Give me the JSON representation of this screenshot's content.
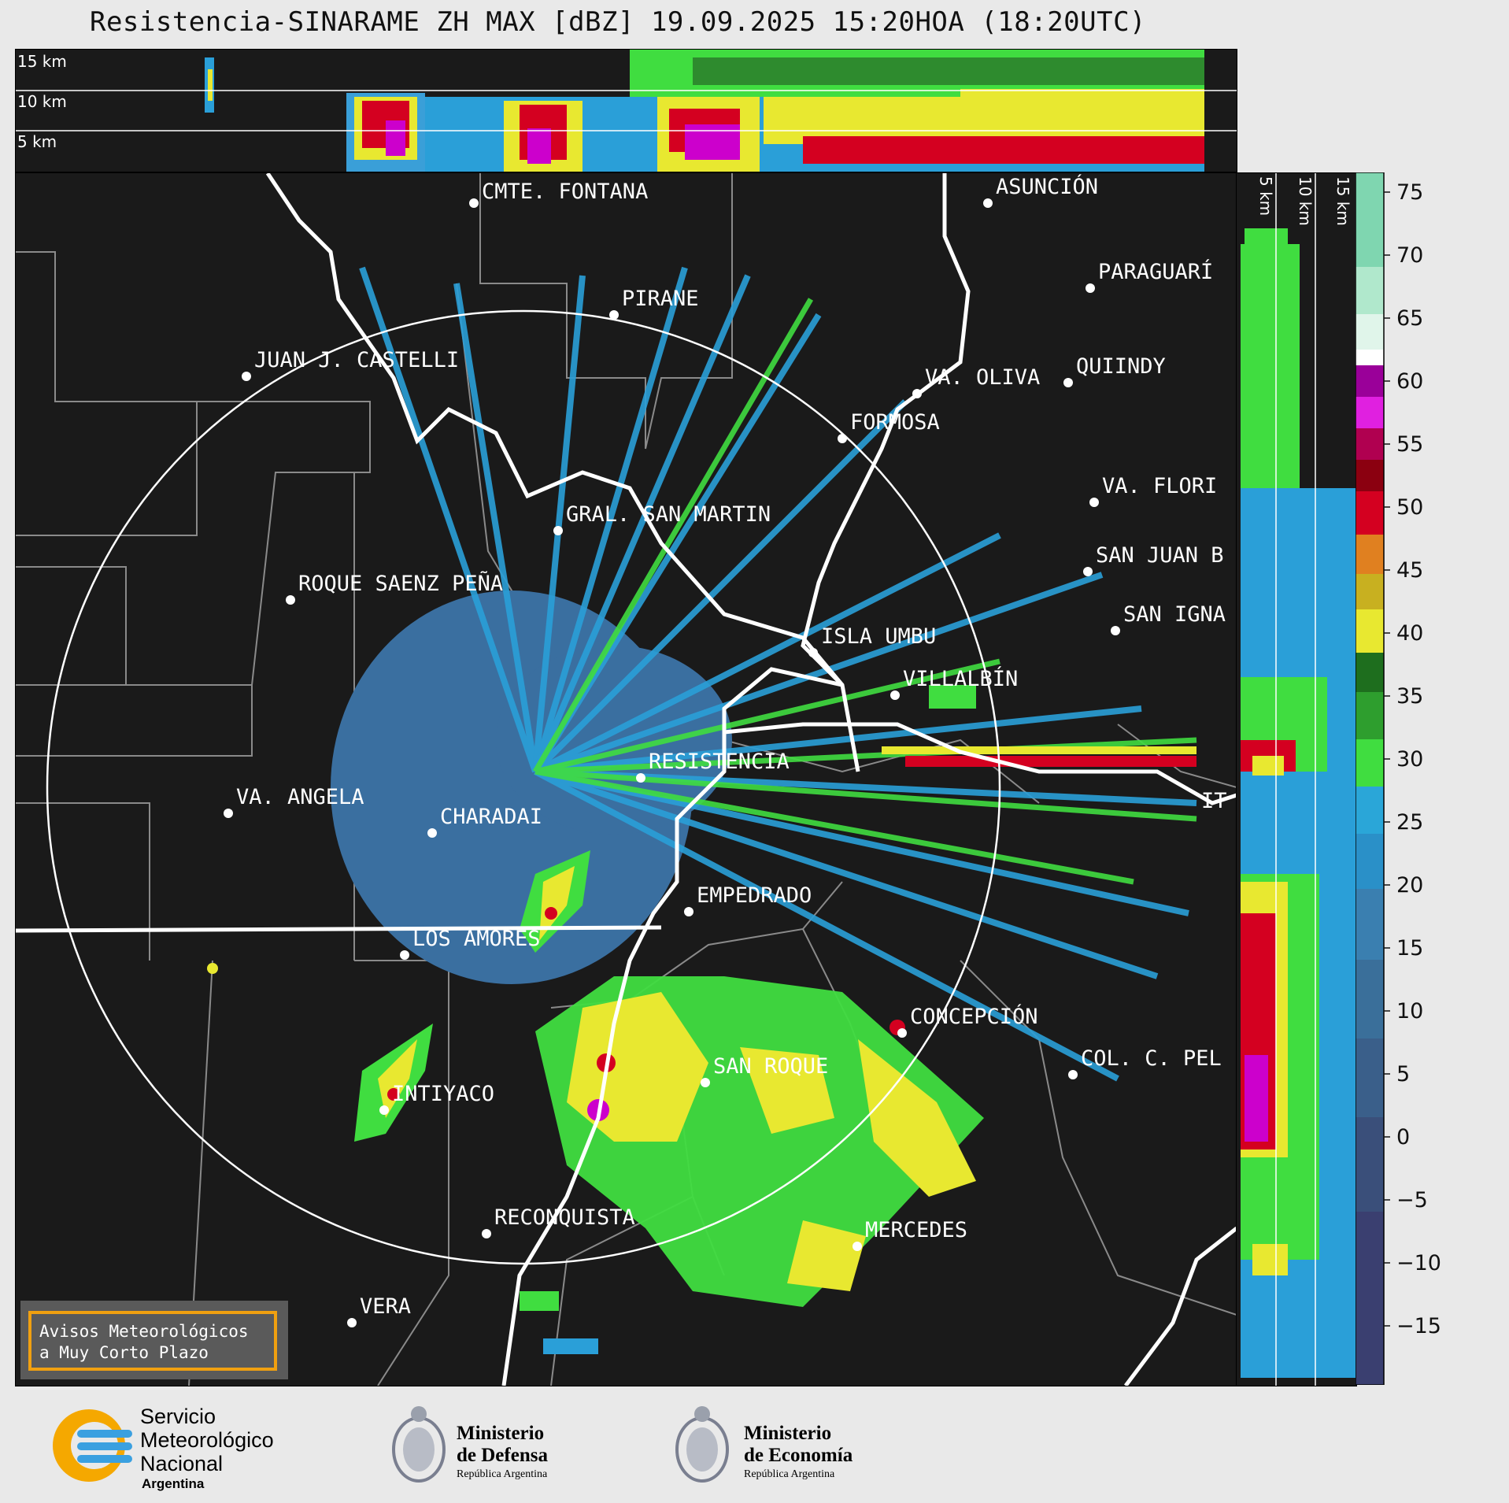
{
  "title": "Resistencia-SINARAME ZH MAX [dBZ] 19.09.2025 15:20HOA (18:20UTC)",
  "height_labels": [
    "15 km",
    "10 km",
    "5 km"
  ],
  "cities": [
    {
      "name": "CMTE. FONTANA"
    },
    {
      "name": "ASUNCIÓN"
    },
    {
      "name": "PIRANE"
    },
    {
      "name": "PARAGUARÍ"
    },
    {
      "name": "JUAN J. CASTELLI"
    },
    {
      "name": "VA. OLIVA"
    },
    {
      "name": "QUIINDY"
    },
    {
      "name": "FORMOSA"
    },
    {
      "name": "VA. FLORI"
    },
    {
      "name": "GRAL. SAN MARTIN"
    },
    {
      "name": "SAN JUAN B"
    },
    {
      "name": "ROQUE SAENZ PEÑA"
    },
    {
      "name": "SAN IGNA"
    },
    {
      "name": "ISLA UMBU"
    },
    {
      "name": "VILLALBÍN"
    },
    {
      "name": "RESISTENCIA"
    },
    {
      "name": "VA. ANGELA"
    },
    {
      "name": "CHARADAI"
    },
    {
      "name": "IT"
    },
    {
      "name": "EMPEDRADO"
    },
    {
      "name": "LOS AMORES"
    },
    {
      "name": "CONCEPCIÓN"
    },
    {
      "name": "SAN ROQUE"
    },
    {
      "name": "COL. C. PEL"
    },
    {
      "name": "INTIYACO"
    },
    {
      "name": "RECONQUISTA"
    },
    {
      "name": "MERCEDES"
    },
    {
      "name": "VERA"
    }
  ],
  "notice": {
    "line1": "Avisos Meteorológicos",
    "line2": "a Muy Corto Plazo"
  },
  "colorbar": {
    "ticks": [
      "75",
      "70",
      "65",
      "60",
      "55",
      "50",
      "45",
      "40",
      "35",
      "30",
      "25",
      "20",
      "15",
      "10",
      "5",
      "0",
      "−5",
      "−10",
      "−15"
    ],
    "colors": {
      "high": "#7fd6b0",
      "white": "#ffffff",
      "magenta": "#cc00cc",
      "red": "#d40020",
      "orange": "#e09020",
      "yellow": "#e8e830",
      "green": "#2e8b2e",
      "lightgreen": "#40dd40",
      "blue": "#2a9fd8",
      "steel": "#3a6fa0",
      "navy": "#3a3f70"
    }
  },
  "logos": {
    "smn": {
      "line1": "Servicio",
      "line2": "Meteorológico",
      "line3": "Nacional",
      "line4": "Argentina"
    },
    "defensa": {
      "line1": "Ministerio",
      "line2": "de Defensa",
      "line3": "República Argentina"
    },
    "economia": {
      "line1": "Ministerio",
      "line2": "de Economía",
      "line3": "República Argentina"
    }
  }
}
